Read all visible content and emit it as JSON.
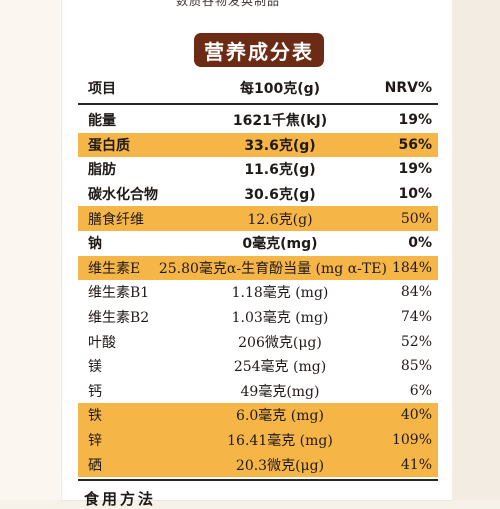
{
  "doc": {
    "subtitle_cut": "数质谷物发奂制品",
    "title": "营养成分表",
    "headers": {
      "item": "项目",
      "per100g": "每100克(g)",
      "nrv": "NRV%"
    },
    "rows": [
      {
        "name": "能量",
        "value": "1621千焦(kJ)",
        "nrv": "19%",
        "highlight": false,
        "bold": true,
        "serif": false
      },
      {
        "name": "蛋白质",
        "value": "33.6克(g)",
        "nrv": "56%",
        "highlight": true,
        "bold": true,
        "serif": false
      },
      {
        "name": "脂肪",
        "value": "11.6克(g)",
        "nrv": "19%",
        "highlight": false,
        "bold": true,
        "serif": false
      },
      {
        "name": "碳水化合物",
        "value": "30.6克(g)",
        "nrv": "10%",
        "highlight": false,
        "bold": true,
        "serif": false
      },
      {
        "name": "膳食纤维",
        "value": "12.6克(g)",
        "nrv": "50%",
        "highlight": true,
        "bold": false,
        "serif": true
      },
      {
        "name": "钠",
        "value": "0毫克(mg)",
        "nrv": "0%",
        "highlight": false,
        "bold": true,
        "serif": false
      },
      {
        "name": "维生素E",
        "value": "25.80毫克α-生育酚当量 (mg α-TE)",
        "nrv": "184%",
        "highlight": true,
        "bold": false,
        "serif": true
      },
      {
        "name": "维生素B1",
        "value": "1.18毫克 (mg)",
        "nrv": "84%",
        "highlight": false,
        "bold": false,
        "serif": true
      },
      {
        "name": "维生素B2",
        "value": "1.03毫克 (mg)",
        "nrv": "74%",
        "highlight": false,
        "bold": false,
        "serif": true
      },
      {
        "name": "叶酸",
        "value": "206微克(μg)",
        "nrv": "52%",
        "highlight": false,
        "bold": false,
        "serif": true
      },
      {
        "name": "镁",
        "value": "254毫克 (mg)",
        "nrv": "85%",
        "highlight": false,
        "bold": false,
        "serif": true
      },
      {
        "name": "钙",
        "value": "49毫克(mg)",
        "nrv": "6%",
        "highlight": false,
        "bold": false,
        "serif": true
      },
      {
        "name": "铁",
        "value": "6.0毫克 (mg)",
        "nrv": "40%",
        "highlight": true,
        "bold": false,
        "serif": true
      },
      {
        "name": "锌",
        "value": "16.41毫克 (mg)",
        "nrv": "109%",
        "highlight": true,
        "bold": false,
        "serif": true
      },
      {
        "name": "硒",
        "value": "20.3微克(μg)",
        "nrv": "41%",
        "highlight": true,
        "bold": false,
        "serif": true
      }
    ],
    "footer_cut": "食用方法"
  },
  "colors": {
    "title_badge": "#6b2b14",
    "highlight": "#f6b647",
    "text": "#1f1a17"
  }
}
